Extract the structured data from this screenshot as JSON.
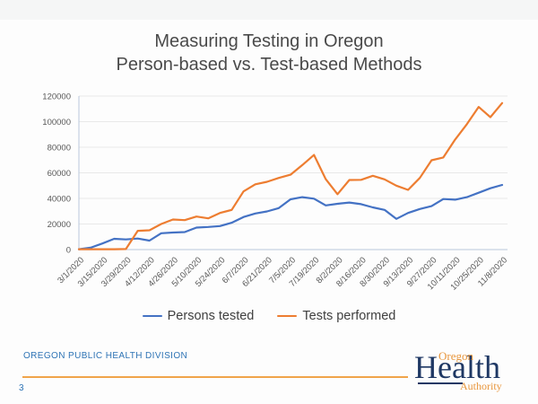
{
  "page": {
    "title_line1": "Measuring Testing in Oregon",
    "title_line2": "Person-based vs. Test-based Methods",
    "footer_left": "OREGON PUBLIC HEALTH DIVISION",
    "page_number": "3"
  },
  "logo": {
    "oregon": "Oregon",
    "health": "Health",
    "authority": "Authority"
  },
  "colors": {
    "persons_line": "#4472C4",
    "tests_line": "#ED7D31",
    "gridline": "#e9e9e9",
    "axis_line": "#b9c6da",
    "tick_label": "#595959",
    "title_text": "#4a4a4a",
    "footer_blue": "#2e74b5",
    "gold_bar": "#f0a44b",
    "logo_navy": "#1f3864",
    "logo_orange": "#e8963c"
  },
  "chart_data": {
    "type": "line",
    "title": "Measuring Testing in Oregon / Person-based vs. Test-based Methods",
    "xlabel": "",
    "ylabel": "",
    "ylim": [
      0,
      120000
    ],
    "ytick_step": 20000,
    "ytick_labels": [
      "0",
      "20000",
      "40000",
      "60000",
      "80000",
      "100000",
      "120000"
    ],
    "grid": "horizontal",
    "legend_position": "bottom",
    "x_label_every": 2,
    "categories": [
      "3/1/2020",
      "3/8/2020",
      "3/15/2020",
      "3/22/2020",
      "3/29/2020",
      "4/5/2020",
      "4/12/2020",
      "4/19/2020",
      "4/26/2020",
      "5/3/2020",
      "5/10/2020",
      "5/17/2020",
      "5/24/2020",
      "5/31/2020",
      "6/7/2020",
      "6/14/2020",
      "6/21/2020",
      "6/28/2020",
      "7/5/2020",
      "7/12/2020",
      "7/19/2020",
      "7/26/2020",
      "8/2/2020",
      "8/9/2020",
      "8/16/2020",
      "8/23/2020",
      "8/30/2020",
      "9/6/2020",
      "9/13/2020",
      "9/20/2020",
      "9/27/2020",
      "10/4/2020",
      "10/11/2020",
      "10/18/2020",
      "10/25/2020",
      "11/1/2020",
      "11/8/2020"
    ],
    "series": [
      {
        "name": "Persons tested",
        "color_key": "persons_line",
        "values": [
          300,
          1500,
          4800,
          8400,
          7900,
          8600,
          7000,
          12800,
          13300,
          13700,
          17200,
          17700,
          18400,
          21000,
          25500,
          28200,
          29800,
          32400,
          39300,
          41000,
          39800,
          34500,
          35800,
          36800,
          35500,
          33000,
          31000,
          24000,
          28600,
          31700,
          34000,
          39500,
          39000,
          41000,
          44400,
          47900,
          50500
        ]
      },
      {
        "name": "Tests performed",
        "color_key": "tests_line",
        "values": [
          300,
          300,
          300,
          300,
          400,
          14700,
          15100,
          20000,
          23500,
          23000,
          25800,
          24400,
          28600,
          31000,
          45500,
          51000,
          53000,
          56000,
          58500,
          66000,
          74000,
          55000,
          43300,
          54400,
          54500,
          57700,
          54900,
          50000,
          46700,
          56000,
          69800,
          72000,
          86000,
          98000,
          111500,
          103500,
          114500
        ]
      }
    ]
  }
}
